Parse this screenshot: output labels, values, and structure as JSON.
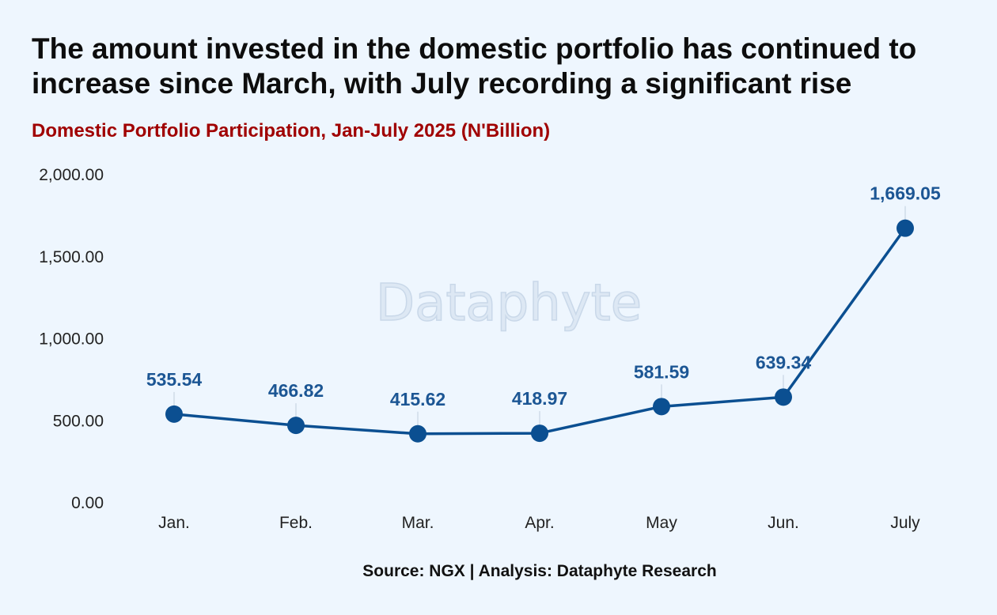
{
  "title": "The amount invested in the domestic portfolio has continued to increase since March, with July recording a significant rise",
  "subtitle": "Domestic Portfolio Participation, Jan-July 2025 (N'Billion)",
  "source": "Source: NGX | Analysis: Dataphyte Research",
  "watermark": "Dataphyte",
  "colors": {
    "background": "#eef6fe",
    "line": "#0b4f91",
    "title": "#0d0d0d",
    "subtitle": "#a00000",
    "data_label": "#1c5694"
  },
  "chart_data": {
    "type": "line",
    "title": "Domestic Portfolio Participation, Jan-July 2025 (N'Billion)",
    "xlabel": "",
    "ylabel": "",
    "categories": [
      "Jan.",
      "Feb.",
      "Mar.",
      "Apr.",
      "May",
      "Jun.",
      "July"
    ],
    "series": [
      {
        "name": "Domestic Portfolio Participation",
        "values": [
          535.54,
          466.82,
          415.62,
          418.97,
          581.59,
          639.34,
          1669.05
        ],
        "labels": [
          "535.54",
          "466.82",
          "415.62",
          "418.97",
          "581.59",
          "639.34",
          "1,669.05"
        ]
      }
    ],
    "ylim": [
      0,
      2000
    ],
    "yticks": [
      0,
      500,
      1000,
      1500,
      2000
    ],
    "ytick_labels": [
      "0.00",
      "500.00",
      "1,000.00",
      "1,500.00",
      "2,000.00"
    ],
    "grid": false,
    "legend": "none"
  }
}
